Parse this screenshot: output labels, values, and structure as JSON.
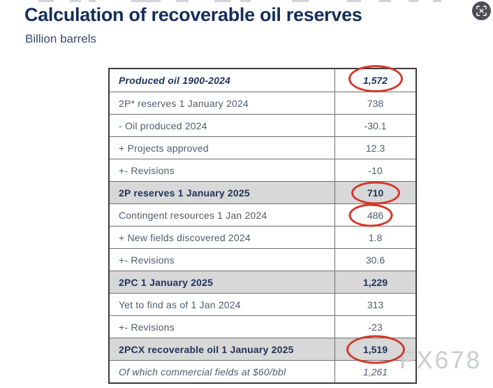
{
  "header": {
    "title": "Calculation of recoverable oil reserves",
    "subtitle": "Billion barrels"
  },
  "viewer": {
    "watermark": "FX678",
    "scan_icon": "scan-fullscreen"
  },
  "colors": {
    "title_navy": "#162d5b",
    "body_text": "#4d5c6e",
    "emphasis_text": "#20335c",
    "shaded_row_bg": "#d8d8d8",
    "annotation_red": "#d0392b",
    "watermark_gray": "#c9cbcd",
    "icon_circle_bg": "#4e4e56"
  },
  "chart_data": {
    "type": "table",
    "title": "Calculation of recoverable oil reserves",
    "unit": "Billion barrels",
    "rows": [
      {
        "label": "Produced oil 1900-2024",
        "value": "1,572",
        "style": "bold-italic",
        "shaded": false,
        "circled": true
      },
      {
        "label": "2P* reserves 1 January 2024",
        "value": "738",
        "style": "regular",
        "shaded": false,
        "circled": false
      },
      {
        "label": "- Oil produced 2024",
        "value": "-30.1",
        "style": "regular",
        "shaded": false,
        "circled": false
      },
      {
        "label": "+ Projects approved",
        "value": "12.3",
        "style": "regular",
        "shaded": false,
        "circled": false
      },
      {
        "label": "+- Revisions",
        "value": "-10",
        "style": "regular",
        "shaded": false,
        "circled": false
      },
      {
        "label": "2P reserves 1 January 2025",
        "value": "710",
        "style": "bold",
        "shaded": true,
        "circled": true
      },
      {
        "label": "Contingent resources 1 Jan 2024",
        "value": "486",
        "style": "regular",
        "shaded": false,
        "circled": true
      },
      {
        "label": "+ New fields discovered 2024",
        "value": "1.8",
        "style": "regular",
        "shaded": false,
        "circled": false
      },
      {
        "label": "+- Revisions",
        "value": "30.6",
        "style": "regular",
        "shaded": false,
        "circled": false
      },
      {
        "label": "2PC 1 January 2025",
        "value": "1,229",
        "style": "bold",
        "shaded": true,
        "circled": false
      },
      {
        "label": "Yet to find as of 1 Jan 2024",
        "value": "313",
        "style": "regular",
        "shaded": false,
        "circled": false
      },
      {
        "label": "+- Revisions",
        "value": "-23",
        "style": "regular",
        "shaded": false,
        "circled": false
      },
      {
        "label": "2PCX recoverable oil 1 January 2025",
        "value": "1,519",
        "style": "bold",
        "shaded": true,
        "circled": true
      },
      {
        "label": "Of which commercial fields at $60/bbl",
        "value": "1,261",
        "style": "italic",
        "shaded": false,
        "circled": false
      }
    ]
  }
}
